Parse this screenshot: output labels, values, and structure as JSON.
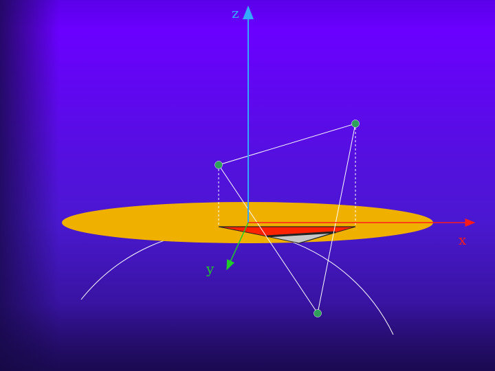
{
  "axes": {
    "x": {
      "label": "x",
      "color": "#ff1a1a"
    },
    "y": {
      "label": "y",
      "color": "#1fcc2a"
    },
    "z": {
      "label": "z",
      "color": "#33aaff"
    }
  },
  "colors": {
    "background_top": "#6a00ff",
    "background_bottom": "#2a0f7a",
    "equatorial_disk": "#f0b000",
    "sphere_outline": "#ffffff",
    "points": "#2fa05a",
    "triangle_fill_red": "#ff2200",
    "triangle_fill_gray": "#c8c8c8"
  },
  "scene": {
    "sphere": true,
    "equatorial_plane": true,
    "spherical_triangle_vertices": 3
  }
}
